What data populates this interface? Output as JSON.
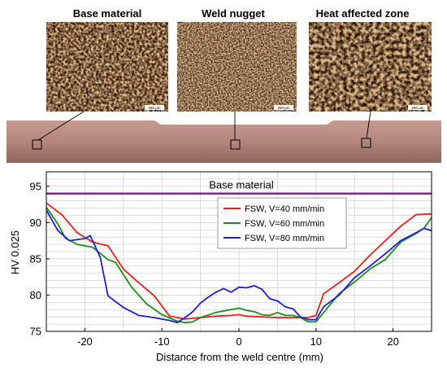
{
  "micrographs": {
    "labels": [
      "Base material",
      "Weld nugget",
      "Heat affected zone"
    ],
    "scale_text": "250 μm"
  },
  "chart_data": {
    "type": "line",
    "title": "",
    "xlabel": "Distance from the weld centre (mm)",
    "ylabel": "HV 0.025",
    "xlim": [
      -25,
      25
    ],
    "ylim": [
      75,
      97
    ],
    "xticks": [
      -20,
      -10,
      0,
      10,
      20
    ],
    "yticks": [
      75,
      80,
      85,
      90,
      95
    ],
    "grid": true,
    "legend_position": "center-right",
    "annotation": {
      "text": "Base material",
      "value": 94
    },
    "series": [
      {
        "name": "FSW, V=40 mm/min",
        "color": "#e8201e",
        "x": [
          -25,
          -23,
          -21,
          -19,
          -17,
          -15,
          -13,
          -11,
          -9,
          -7,
          -5,
          -3,
          -1,
          0,
          1,
          3,
          5,
          7,
          9,
          10,
          11,
          13,
          15,
          17,
          19,
          21,
          23,
          25
        ],
        "y": [
          92.7,
          91.1,
          88.6,
          87.3,
          86.8,
          83.6,
          81.7,
          79.9,
          77.1,
          76.7,
          76.9,
          77.1,
          77.2,
          77.3,
          77.1,
          77.0,
          76.9,
          76.9,
          76.9,
          77.2,
          80.2,
          81.7,
          83.3,
          85.5,
          87.5,
          89.5,
          91.1,
          91.2
        ]
      },
      {
        "name": "FSW, V=60 mm/min",
        "color": "#1f8a1f",
        "x": [
          -25,
          -23.5,
          -22.5,
          -21,
          -19,
          -17,
          -16,
          -14,
          -12,
          -10,
          -8,
          -7,
          -6,
          -5,
          -3,
          -1,
          0,
          1,
          2,
          3,
          4,
          5,
          6,
          7,
          8,
          9,
          10,
          11,
          13,
          15,
          17,
          19,
          21,
          23,
          24,
          25
        ],
        "y": [
          92.1,
          89.8,
          87.8,
          87.0,
          86.6,
          84.9,
          84.5,
          81.2,
          78.8,
          77.3,
          76.4,
          76.2,
          76.3,
          76.9,
          77.6,
          78.0,
          78.2,
          77.9,
          77.7,
          77.3,
          77.2,
          77.6,
          77.2,
          77.2,
          76.9,
          76.3,
          76.3,
          77.6,
          80.2,
          81.8,
          83.6,
          84.9,
          87.3,
          88.5,
          89.2,
          90.7
        ]
      },
      {
        "name": "FSW, V=80 mm/min",
        "color": "#1f1fd6",
        "x": [
          -25,
          -23.5,
          -22,
          -20,
          -19.3,
          -18,
          -17,
          -15,
          -13,
          -11,
          -9,
          -8,
          -7,
          -6,
          -5,
          -4,
          -3,
          -2,
          -1,
          0,
          1,
          2,
          3,
          4,
          5,
          6,
          7,
          8,
          9,
          10,
          11,
          13,
          15,
          17,
          19,
          21,
          23,
          24,
          25
        ],
        "y": [
          91.7,
          88.9,
          87.5,
          87.8,
          88.2,
          85.2,
          79.9,
          78.3,
          77.2,
          76.9,
          76.5,
          76.2,
          76.9,
          77.7,
          78.9,
          79.7,
          80.4,
          80.9,
          80.4,
          81.1,
          81.0,
          81.3,
          80.8,
          79.5,
          79.2,
          78.4,
          78.1,
          77.0,
          76.6,
          76.6,
          78.4,
          80.0,
          82.4,
          84.0,
          85.7,
          87.5,
          88.6,
          89.2,
          88.9
        ]
      }
    ]
  }
}
